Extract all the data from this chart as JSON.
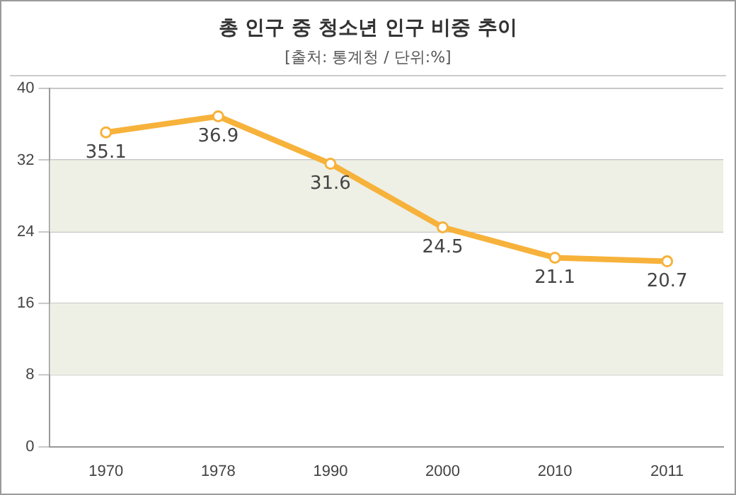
{
  "chart_data": {
    "type": "line",
    "title": "총 인구 중 청소년 인구 비중 추이",
    "subtitle": "[출처: 통계청 / 단위:%]",
    "categories": [
      "1970",
      "1978",
      "1990",
      "2000",
      "2010",
      "2011"
    ],
    "series": [
      {
        "color": "#f7b23b",
        "values": [
          35.1,
          36.9,
          31.6,
          24.5,
          21.1,
          20.7
        ]
      }
    ],
    "ylim": [
      0,
      40
    ],
    "yticks": [
      0,
      8,
      16,
      24,
      32,
      40
    ],
    "grid": "y",
    "legend": false,
    "marker": "circle",
    "line_style": "solid",
    "data_labels": true,
    "bands": [
      {
        "axis": "y",
        "from": 8,
        "to": 16,
        "color": "#eef0e6"
      },
      {
        "axis": "y",
        "from": 24,
        "to": 32,
        "color": "#eef0e6"
      }
    ]
  }
}
